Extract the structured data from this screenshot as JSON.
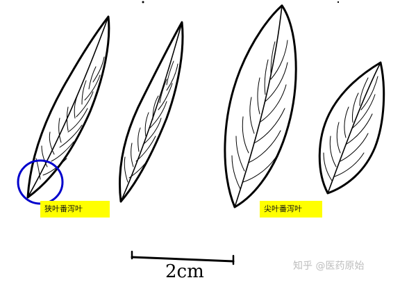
{
  "labels": {
    "narrow_leaf": "狭叶番泻叶",
    "pointed_leaf": "尖叶番泻叶"
  },
  "scale_bar": {
    "text": "2cm"
  },
  "watermark": {
    "text": "知乎 @医药原始"
  },
  "colors": {
    "label_background": "#ffff00",
    "highlight_circle": "#0000cc",
    "ink": "#000000",
    "watermark": "#bdbdbd"
  }
}
